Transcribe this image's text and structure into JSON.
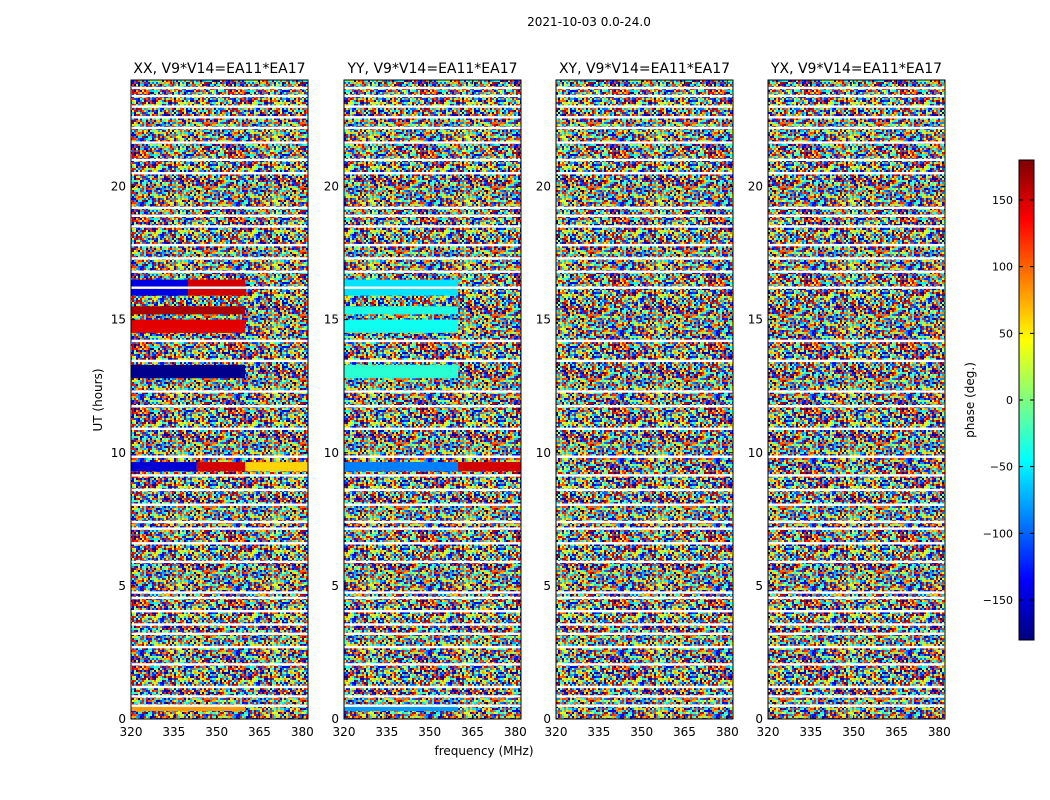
{
  "figure": {
    "suptitle": "2021-10-03 0.0-24.0",
    "xlabel": "frequency (MHz)",
    "ylabel": "UT (hours)"
  },
  "colorbar": {
    "label": "phase (deg.)",
    "colormap": "jet",
    "range": [
      -180,
      180
    ],
    "ticks": [
      150,
      100,
      50,
      0,
      -50,
      -100,
      -150
    ],
    "tick_labels": [
      "150",
      "100",
      "50",
      "0",
      "−50",
      "−100",
      "−150"
    ],
    "colors": [
      "#00007f",
      "#0000ff",
      "#007fff",
      "#00ffff",
      "#7fff7f",
      "#ffff00",
      "#ff7f00",
      "#ff0000",
      "#7f0000"
    ]
  },
  "chart_data": {
    "type": "heatmap",
    "x_axis": {
      "label": "frequency (MHz)",
      "range": [
        320,
        382
      ],
      "ticks": [
        320,
        335,
        350,
        365,
        380
      ],
      "tick_labels": [
        "320",
        "335",
        "350",
        "365",
        "380"
      ]
    },
    "y_axis": {
      "label": "UT (hours)",
      "range": [
        0,
        24
      ],
      "ticks": [
        0,
        5,
        10,
        15,
        20
      ],
      "tick_labels": [
        "0",
        "5",
        "10",
        "15",
        "20"
      ]
    },
    "value_label": "phase (deg.)",
    "value_range": [
      -180,
      180
    ],
    "panels": [
      {
        "title": "XX, V9*V14=EA11*EA17",
        "coherent_bands": [
          {
            "ut": [
              0.3,
              0.55
            ],
            "freq": [
              320,
              360
            ],
            "phase": 80
          },
          {
            "ut": [
              9.3,
              9.65
            ],
            "freq": [
              320,
              343
            ],
            "phase": -150
          },
          {
            "ut": [
              9.3,
              9.65
            ],
            "freq": [
              343,
              360
            ],
            "phase": 150
          },
          {
            "ut": [
              9.3,
              9.65
            ],
            "freq": [
              360,
              382
            ],
            "phase": 60
          },
          {
            "ut": [
              12.8,
              13.3
            ],
            "freq": [
              320,
              360
            ],
            "phase": -175
          },
          {
            "ut": [
              14.5,
              15.0
            ],
            "freq": [
              320,
              360
            ],
            "phase": 145
          },
          {
            "ut": [
              15.2,
              15.5
            ],
            "freq": [
              320,
              360
            ],
            "phase": 165
          },
          {
            "ut": [
              15.9,
              16.5
            ],
            "freq": [
              320,
              340
            ],
            "phase": -145
          },
          {
            "ut": [
              15.9,
              16.5
            ],
            "freq": [
              340,
              360
            ],
            "phase": 150
          }
        ]
      },
      {
        "title": "YY, V9*V14=EA11*EA17",
        "coherent_bands": [
          {
            "ut": [
              0.3,
              0.55
            ],
            "freq": [
              320,
              360
            ],
            "phase": -80
          },
          {
            "ut": [
              9.3,
              9.65
            ],
            "freq": [
              320,
              360
            ],
            "phase": -90
          },
          {
            "ut": [
              9.3,
              9.65
            ],
            "freq": [
              360,
              382
            ],
            "phase": 150
          },
          {
            "ut": [
              12.8,
              13.3
            ],
            "freq": [
              320,
              360
            ],
            "phase": -30
          },
          {
            "ut": [
              14.5,
              15.0
            ],
            "freq": [
              320,
              360
            ],
            "phase": -40
          },
          {
            "ut": [
              15.2,
              15.5
            ],
            "freq": [
              320,
              360
            ],
            "phase": -35
          },
          {
            "ut": [
              15.9,
              16.5
            ],
            "freq": [
              320,
              360
            ],
            "phase": -55
          }
        ]
      },
      {
        "title": "XY, V9*V14=EA11*EA17",
        "coherent_bands": []
      },
      {
        "title": "YX, V9*V14=EA11*EA17",
        "coherent_bands": []
      }
    ],
    "flagged_ut_rows": [
      0.5,
      0.85,
      1.2,
      2.05,
      2.7,
      3.2,
      3.55,
      4.05,
      4.55,
      4.75,
      5.9,
      6.6,
      7.15,
      7.4,
      8.05,
      8.6,
      9.15,
      9.85,
      10.9,
      11.75,
      12.3,
      13.45,
      14.2,
      16.2,
      16.8,
      17.3,
      17.8,
      18.5,
      18.9,
      19.2,
      20.5,
      21.0,
      21.65,
      22.2,
      22.6,
      23.0,
      23.4,
      23.7
    ]
  }
}
